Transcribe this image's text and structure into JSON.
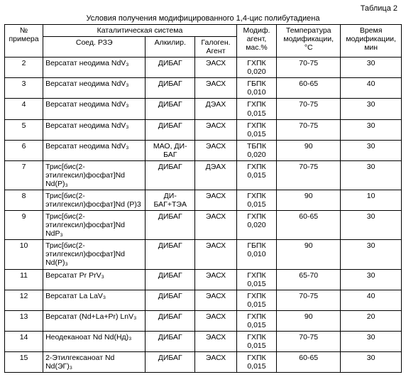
{
  "table_label": "Таблица 2",
  "caption": "Условия получения модифицированного 1,4-цис полибутадиена",
  "headers": {
    "num1": "№",
    "num2": "примера",
    "cat": "Каталитическая система",
    "comp": "Соед. РЗЭ",
    "alk": "Алкилир.",
    "hal1": "Галоген.",
    "hal2": "Агент",
    "mod1": "Модиф.",
    "mod2": "агент,",
    "mod3": "мас.%",
    "temp1": "Температура",
    "temp2": "модификации,",
    "temp3": "°С",
    "time1": "Время",
    "time2": "модификации,",
    "time3": "мин"
  },
  "rows": [
    {
      "n": "2",
      "comp": "Версатат неодима NdV₃",
      "alk": "ДИБАГ",
      "hal": "ЭАСХ",
      "mod1": "ГХПК",
      "mod2": "0,020",
      "temp": "70-75",
      "time": "30"
    },
    {
      "n": "3",
      "comp": "Версатат неодима NdV₃",
      "alk": "ДИБАГ",
      "hal": "ЭАСХ",
      "mod1": "ГБПК",
      "mod2": "0,010",
      "temp": "60-65",
      "time": "40"
    },
    {
      "n": "4",
      "comp": "Версатат неодима NdV₃",
      "alk": "ДИБАГ",
      "hal": "ДЭАХ",
      "mod1": "ГХПК",
      "mod2": "0,015",
      "temp": "70-75",
      "time": "30"
    },
    {
      "n": "5",
      "comp": "Версатат неодима NdV₃",
      "alk": "ДИБАГ",
      "hal": "ЭАСХ",
      "mod1": "ГХПК",
      "mod2": "0,015",
      "temp": "70-75",
      "time": "30"
    },
    {
      "n": "6",
      "comp": "Версатат неодима NdV₃",
      "alk": "МАО, ДИ-БАГ",
      "hal": "ЭАСХ",
      "mod1": "ТБПК",
      "mod2": "0,020",
      "temp": "90",
      "time": "30"
    },
    {
      "n": "7",
      "comp": "Трис[бис(2-этилгексил)фосфат]Nd Nd(P)₃",
      "alk": "ДИБАГ",
      "hal": "ДЭАХ",
      "mod1": "ГХПК",
      "mod2": "0,015",
      "temp": "70-75",
      "time": "30"
    },
    {
      "n": "8",
      "comp": "Трис[бис(2-этилгексил)фосфат]Nd (P)3",
      "alk": "ДИ-БАГ+ТЭА",
      "hal": "ЭАСХ",
      "mod1": "ГХПК",
      "mod2": "0,015",
      "temp": "90",
      "time": "10"
    },
    {
      "n": "9",
      "comp": "Трис[бис(2-этилгексил)фосфат]Nd NdP₃",
      "alk": "ДИБАГ",
      "hal": "ЭАСХ",
      "mod1": "ГХПК",
      "mod2": "0,020",
      "temp": "60-65",
      "time": "30"
    },
    {
      "n": "10",
      "comp": "Трис[бис(2-этилгексил)фосфат]Nd Nd(P)₃",
      "alk": "ДИБАГ",
      "hal": "ЭАСХ",
      "mod1": "ГБПК",
      "mod2": "0,010",
      "temp": "90",
      "time": "30"
    },
    {
      "n": "11",
      "comp": "Версатат Pr PrV₃",
      "alk": "ДИБАГ",
      "hal": "ЭАСХ",
      "mod1": "ГХПК",
      "mod2": "0,015",
      "temp": "65-70",
      "time": "30"
    },
    {
      "n": "12",
      "comp": "Версатат La LaV₃",
      "alk": "ДИБАГ",
      "hal": "ЭАСХ",
      "mod1": "ГХПК",
      "mod2": "0,015",
      "temp": "70-75",
      "time": "40"
    },
    {
      "n": "13",
      "comp": "Версатат (Nd+La+Pr) LnV₃",
      "alk": "ДИБАГ",
      "hal": "ЭАСХ",
      "mod1": "ГХПК",
      "mod2": "0,015",
      "temp": "90",
      "time": "20"
    },
    {
      "n": "14",
      "comp": "Неодеканоат Nd Nd(Нд)₃",
      "alk": "ДИБАГ",
      "hal": "ЭАСХ",
      "mod1": "ГХПК",
      "mod2": "0,015",
      "temp": "70-75",
      "time": "30"
    },
    {
      "n": "15",
      "comp": "2-Этилгексаноат Nd Nd(ЭГ)₃",
      "alk": "ДИБАГ",
      "hal": "ЭАСХ",
      "mod1": "ГХПК",
      "mod2": "0,015",
      "temp": "60-65",
      "time": "30"
    }
  ]
}
